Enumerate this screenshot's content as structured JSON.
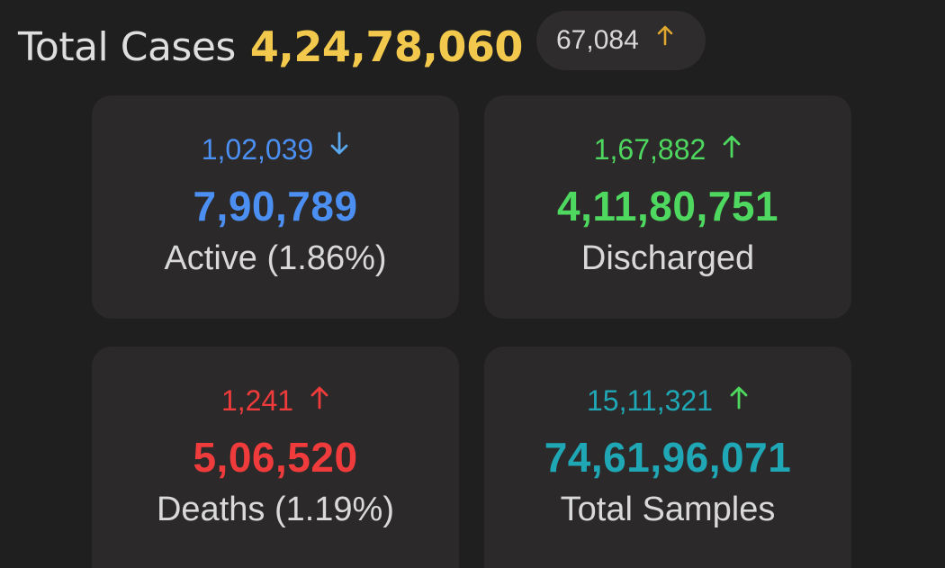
{
  "header": {
    "title": "Total Cases",
    "total": "4,24,78,060",
    "delta": "67,084",
    "delta_direction": "up-arrow-icon"
  },
  "cards": {
    "active": {
      "delta": "1,02,039",
      "delta_direction": "down-arrow-icon",
      "value": "7,90,789",
      "label": "Active (1.86%)",
      "color": "#4c8ff2",
      "arrow_color": "#5aa9f0"
    },
    "discharged": {
      "delta": "1,67,882",
      "delta_direction": "up-arrow-icon",
      "value": "4,11,80,751",
      "label": "Discharged",
      "color": "#4fd860",
      "arrow_color": "#4fd860"
    },
    "deaths": {
      "delta": "1,241",
      "delta_direction": "up-arrow-icon",
      "value": "5,06,520",
      "label": "Deaths (1.19%)",
      "color": "#ef3b3b",
      "arrow_color": "#ef3b3b"
    },
    "samples": {
      "delta": "15,11,321",
      "delta_direction": "up-arrow-icon",
      "value": "74,61,96,071",
      "label": "Total Samples",
      "color": "#20a7b6",
      "arrow_color": "#4fd860"
    }
  },
  "colors": {
    "background": "#201f1f",
    "card": "#2b2929",
    "accent_total": "#f2c94c",
    "label_text": "#d9d9d9"
  }
}
